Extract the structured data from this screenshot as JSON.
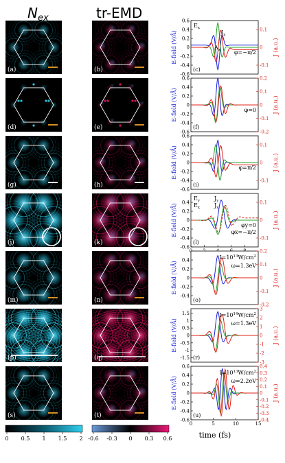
{
  "headers": {
    "col1": "N",
    "col1_sub": "ex",
    "col2": "tr-EMD"
  },
  "rows": [
    {
      "left_label": "(a)",
      "mid_label": "(b)",
      "right_label": "(c)",
      "variant": "a"
    },
    {
      "left_label": "(d)",
      "mid_label": "(e)",
      "right_label": "(f)",
      "variant": "b"
    },
    {
      "left_label": "(g)",
      "mid_label": "(h)",
      "right_label": "(i)",
      "variant": "c"
    },
    {
      "left_label": "(j)",
      "mid_label": "(k)",
      "right_label": "(l)",
      "variant": "d"
    },
    {
      "left_label": "(m)",
      "mid_label": "(n)",
      "right_label": "(o)",
      "variant": "e"
    },
    {
      "left_label": "(p)",
      "mid_label": "(q)",
      "right_label": "(r)",
      "variant": "f"
    },
    {
      "left_label": "(s)",
      "mid_label": "(t)",
      "right_label": "(u)",
      "variant": "g"
    }
  ],
  "colorbars": [
    {
      "ticks": [
        "0",
        "0.5",
        "1",
        "1.5",
        "2"
      ],
      "colors": [
        "#000000",
        "#1fb8d8"
      ]
    },
    {
      "ticks": [
        "-0.6",
        "-0.3",
        "0",
        "0.3",
        "0.6"
      ],
      "colors": [
        "#3a6ea8",
        "#000000",
        "#d81060"
      ]
    }
  ],
  "colors": {
    "ex": "#1a22d8",
    "ax": "#28a028",
    "j": "#e02018",
    "ey": "#1a22d8",
    "jy": "#e02018",
    "cyan": "#29c4e0",
    "magenta": "#d81060",
    "scale_white": "#ffffff",
    "scale_orange": "#f0a020"
  },
  "chart_data": [
    {
      "type": "line",
      "panel": "(c)",
      "ylabel": "E-field (V/Å)",
      "y2label": "J (a.u.)",
      "ylim": [
        -0.6,
        0.6
      ],
      "y2lim": [
        -0.15,
        0.15
      ],
      "xlim": [
        0,
        15
      ],
      "yticks": [
        "-0.6",
        "-0.4",
        "-0.2",
        "0",
        "0.2",
        "0.4",
        "0.6"
      ],
      "y2ticks": [
        "-0.1",
        "0",
        "0.1"
      ],
      "annotation": "φ=−π/2",
      "legend": [
        "E",
        "x",
        "A",
        "x",
        "J",
        "x"
      ],
      "series": [
        {
          "name": "E_x",
          "x": [
            0,
            3,
            4,
            5,
            5.5,
            6,
            6.5,
            7,
            7.5,
            8,
            9,
            15
          ],
          "values": [
            0,
            0,
            0.02,
            -0.3,
            -0.5,
            0.05,
            0.55,
            0.3,
            -0.1,
            -0.15,
            0,
            0
          ]
        },
        {
          "name": "A_x",
          "x": [
            0,
            3,
            4,
            5,
            5.5,
            6,
            6.5,
            7,
            8,
            9,
            15
          ],
          "values": [
            0,
            0,
            0.05,
            0.25,
            0.5,
            0.55,
            0.2,
            -0.45,
            -0.2,
            0,
            0
          ]
        },
        {
          "name": "J_x",
          "axis": "y2",
          "x": [
            0,
            3,
            4,
            5,
            5.5,
            6,
            6.5,
            7,
            8,
            9,
            11,
            13,
            15
          ],
          "values": [
            0,
            0,
            0.01,
            -0.08,
            -0.12,
            0.02,
            0.1,
            -0.02,
            -0.05,
            -0.02,
            -0.03,
            -0.02,
            -0.02
          ]
        }
      ]
    },
    {
      "type": "line",
      "panel": "(f)",
      "ylabel": "E-field (V/Å)",
      "y2label": "J (a.u.)",
      "ylim": [
        -0.6,
        0.6
      ],
      "y2lim": [
        -0.2,
        0.2
      ],
      "xlim": [
        0,
        15
      ],
      "yticks": [
        "-0.6",
        "-0.4",
        "-0.2",
        "0",
        "0.2",
        "0.4",
        "0.6"
      ],
      "y2ticks": [
        "-0.2",
        "-0.1",
        "0",
        "0.1",
        "0.2"
      ],
      "annotation": "φ=0"
    },
    {
      "type": "line",
      "panel": "(i)",
      "ylabel": "E-field (V/Å)",
      "y2label": "J (a.u.)",
      "ylim": [
        -0.6,
        0.6
      ],
      "y2lim": [
        -0.15,
        0.15
      ],
      "xlim": [
        0,
        15
      ],
      "yticks": [
        "-0.6",
        "-0.4",
        "-0.2",
        "0",
        "0.2",
        "0.4",
        "0.6"
      ],
      "y2ticks": [
        "-0.1",
        "0",
        "0.1"
      ],
      "annotation": "φ=π/2"
    },
    {
      "type": "line",
      "panel": "(l)",
      "ylabel": "E-field (V/Å)",
      "y2label": "J (a.u.)",
      "ylim": [
        -0.6,
        0.6
      ],
      "y2lim": [
        -0.15,
        0.15
      ],
      "xlim": [
        0,
        10
      ],
      "yticks": [
        "-0.6",
        "-0.4",
        "-0.2",
        "0",
        "0.2",
        "0.4"
      ],
      "y2ticks": [
        "-0.1",
        "0",
        "0.1"
      ],
      "xticks": [
        "0",
        "2",
        "4",
        "6",
        "8"
      ],
      "annotation": "φy=0",
      "annotation2": "φx=−π/2",
      "legend": [
        "E",
        "y",
        "J",
        "y",
        "E",
        "x",
        "J",
        "x"
      ]
    },
    {
      "type": "line",
      "panel": "(o)",
      "ylabel": "E-field (V/Å)",
      "y2label": "J (a.u.)",
      "ylim": [
        -0.6,
        0.6
      ],
      "y2lim": [
        -0.2,
        0.2
      ],
      "xlim": [
        0,
        15
      ],
      "yticks": [
        "-0.4",
        "-0.2",
        "0",
        "0.2",
        "0.4"
      ],
      "y2ticks": [
        "-0.2",
        "-0.1",
        "0",
        "0.1",
        "0.2"
      ],
      "annotation": "I=10",
      "annotation_sup": "13",
      "annotation_unit": "W/cm",
      "annotation_unit_sup": "2",
      "annotation2": "ω=1.3eV"
    },
    {
      "type": "line",
      "panel": "(r)",
      "ylabel": "E-field (V/Å)",
      "y2label": "J (a.u.)",
      "ylim": [
        -1.8,
        1.8
      ],
      "y2lim": [
        -3,
        3
      ],
      "xlim": [
        0,
        15
      ],
      "yticks": [
        "-1.5",
        "-1",
        "-0.5",
        "0",
        "0.5",
        "1",
        "1.5"
      ],
      "y2ticks": [
        "-3",
        "-2",
        "-1",
        "0",
        "1",
        "2",
        "3"
      ],
      "annotation": "I=10",
      "annotation_sup": "14",
      "annotation_unit": "W/cm",
      "annotation_unit_sup": "2",
      "annotation2": "ω=1.3eV"
    },
    {
      "type": "line",
      "panel": "(u)",
      "ylabel": "E-field (V/Å)",
      "y2label": "J (a.u.)",
      "xlabel": "time (fs)",
      "ylim": [
        -0.6,
        0.6
      ],
      "y2lim": [
        -0.4,
        0.4
      ],
      "xlim": [
        0,
        15
      ],
      "yticks": [
        "-0.6",
        "-0.4",
        "-0.2",
        "0",
        "0.2",
        "0.4",
        "0.6"
      ],
      "y2ticks": [
        "-0.4",
        "-0.3",
        "-0.2",
        "-0.1",
        "0",
        "0.1",
        "0.2",
        "0.3",
        "0.4"
      ],
      "xticks": [
        "0",
        "5",
        "10",
        "15"
      ],
      "annotation": "I=10",
      "annotation_sup": "13",
      "annotation_unit": "W/cm",
      "annotation_unit_sup": "2",
      "annotation2": "ω=2.2eV"
    }
  ]
}
